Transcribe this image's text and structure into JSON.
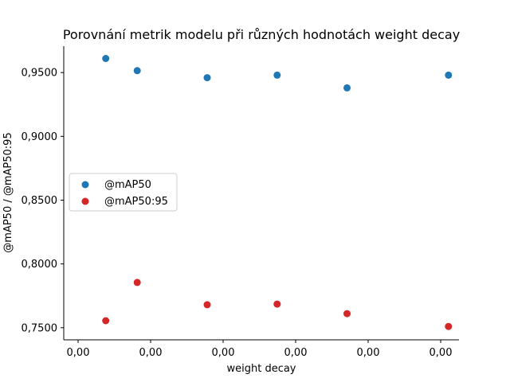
{
  "chart_data": {
    "type": "scatter",
    "title": "Porovnání metrik modelu při různých hodnotách weight decay",
    "xlabel": "weight decay",
    "ylabel": "@mAP50 / @mAP50:95",
    "x_tick_labels": [
      "0,00",
      "0,00",
      "0,00",
      "0,00",
      "0,00",
      "0,00"
    ],
    "y_ticks": [
      0.75,
      0.8,
      0.85,
      0.9,
      0.95
    ],
    "y_tick_labels": [
      "0,7500",
      "0,8000",
      "0,8500",
      "0,9000",
      "0,9500"
    ],
    "xlim": [
      -0.00011,
      0.00102
    ],
    "ylim": [
      0.7405,
      0.9707
    ],
    "grid": false,
    "legend_position": "center-left",
    "series": [
      {
        "name": "@mAP50",
        "color": "#1f77b4",
        "x": [
          1e-05,
          0.0001,
          0.0003,
          0.0005,
          0.0007,
          0.00099
        ],
        "y": [
          0.961,
          0.9515,
          0.946,
          0.948,
          0.938,
          0.948
        ]
      },
      {
        "name": "@mAP50:95",
        "color": "#d62728",
        "x": [
          1e-05,
          0.0001,
          0.0003,
          0.0005,
          0.0007,
          0.00099
        ],
        "y": [
          0.7555,
          0.7855,
          0.768,
          0.7685,
          0.761,
          0.751
        ]
      }
    ]
  }
}
